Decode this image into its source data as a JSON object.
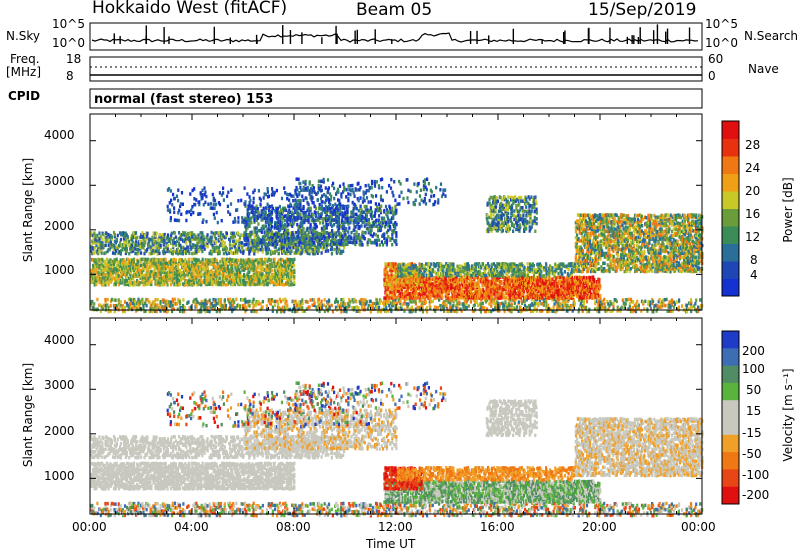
{
  "header": {
    "radar_title": "Hokkaido West (fitACF)",
    "beam": "Beam 05",
    "date": "15/Sep/2019"
  },
  "strip_labels": {
    "noise_sky": "N.Sky",
    "noise_search": "N.Search",
    "freq_line1": "Freq.",
    "freq_line2": "[MHz]",
    "cpid": "CPID",
    "nave": "Nave",
    "noise_ticks_left": [
      "10^5",
      "10^0"
    ],
    "noise_ticks_right": [
      "10^5",
      "10^0"
    ],
    "freq_ticks": [
      "18",
      "8"
    ],
    "nave_ticks": [
      "60",
      "0"
    ],
    "cpid_text": "normal (fast stereo) 153"
  },
  "colors": {
    "power_scale": [
      "#1432d2",
      "#1e46b4",
      "#2a6e9a",
      "#3c8c5a",
      "#6a9c3c",
      "#c8c828",
      "#f0a018",
      "#f07814",
      "#e8320f",
      "#e01010"
    ],
    "velocity_scale": [
      "#1e3cc8",
      "#3c6eb4",
      "#508c64",
      "#5ab43c",
      "#c8c8be",
      "#c8c8be",
      "#f0a028",
      "#f07814",
      "#e84616",
      "#e01010"
    ]
  },
  "chart_data": [
    {
      "type": "heatmap",
      "panel": "power",
      "xlabel": "",
      "ylabel": "Slant Range [km]",
      "ylim": [
        200,
        4600
      ],
      "xlim_hours": [
        0,
        24
      ],
      "yticks": [
        1000,
        2000,
        3000,
        4000
      ],
      "colorbar_label": "Power [dB]",
      "colorbar_ticks": [
        "28",
        "24",
        "20",
        "16",
        "12",
        "8",
        "4"
      ],
      "colorbar_range": [
        0,
        30
      ]
    },
    {
      "type": "heatmap",
      "panel": "velocity",
      "xlabel": "Time UT",
      "ylabel": "Slant Range [km]",
      "ylim": [
        200,
        4600
      ],
      "xlim_hours": [
        0,
        24
      ],
      "yticks": [
        1000,
        2000,
        3000,
        4000
      ],
      "xticks": [
        "00:00",
        "04:00",
        "08:00",
        "12:00",
        "16:00",
        "20:00",
        "00:00"
      ],
      "colorbar_label": "Velocity [m s⁻¹]",
      "colorbar_ticks": [
        "200",
        "100",
        "50",
        "15",
        "-15",
        "-50",
        "-100",
        "-200"
      ],
      "colorbar_range": [
        -250,
        250
      ]
    }
  ]
}
